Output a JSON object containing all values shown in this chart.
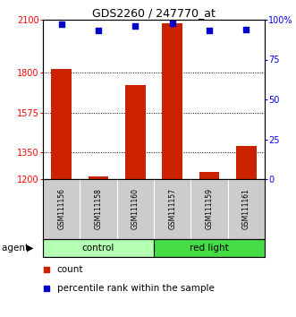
{
  "title": "GDS2260 / 247770_at",
  "samples": [
    "GSM111156",
    "GSM111158",
    "GSM111160",
    "GSM111157",
    "GSM111159",
    "GSM111161"
  ],
  "count_values": [
    1820,
    1215,
    1730,
    2080,
    1240,
    1385
  ],
  "percentile_values": [
    97,
    93,
    96,
    98,
    93,
    94
  ],
  "ylim_left": [
    1200,
    2100
  ],
  "ylim_right": [
    0,
    100
  ],
  "yticks_left": [
    1200,
    1350,
    1575,
    1800,
    2100
  ],
  "yticks_right": [
    0,
    25,
    50,
    75,
    100
  ],
  "ytick_labels_left": [
    "1200",
    "1350",
    "1575",
    "1800",
    "2100"
  ],
  "ytick_labels_right": [
    "0",
    "25",
    "50",
    "75",
    "100%"
  ],
  "groups": [
    {
      "label": "control",
      "indices": [
        0,
        1,
        2
      ],
      "color": "#b3ffb3"
    },
    {
      "label": "red light",
      "indices": [
        3,
        4,
        5
      ],
      "color": "#44dd44"
    }
  ],
  "bar_color": "#cc2200",
  "dot_color": "#0000cc",
  "bg_color": "#cccccc",
  "legend_count": "count",
  "legend_percentile": "percentile rank within the sample"
}
